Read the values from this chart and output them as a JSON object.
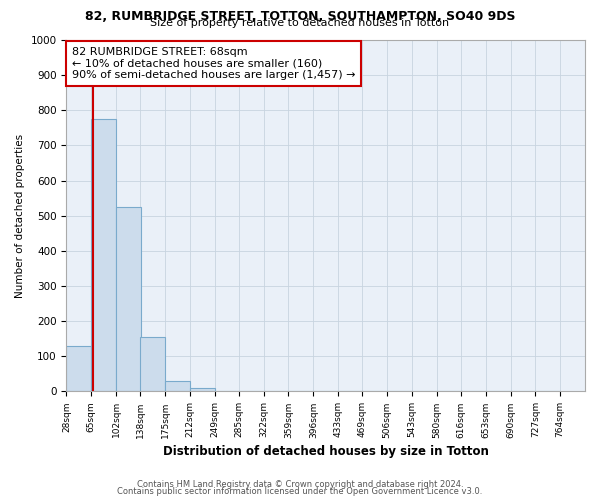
{
  "title1": "82, RUMBRIDGE STREET, TOTTON, SOUTHAMPTON, SO40 9DS",
  "title2": "Size of property relative to detached houses in Totton",
  "xlabel": "Distribution of detached houses by size in Totton",
  "ylabel": "Number of detached properties",
  "footer1": "Contains HM Land Registry data © Crown copyright and database right 2024.",
  "footer2": "Contains public sector information licensed under the Open Government Licence v3.0.",
  "bins": [
    28,
    65,
    102,
    138,
    175,
    212,
    249,
    285,
    322,
    359,
    396,
    433,
    469,
    506,
    543,
    580,
    616,
    653,
    690,
    727,
    764
  ],
  "bar_heights": [
    130,
    775,
    525,
    155,
    30,
    10,
    0,
    0,
    0,
    0,
    0,
    0,
    0,
    0,
    0,
    0,
    0,
    0,
    0,
    0
  ],
  "bar_color": "#ccdcec",
  "bar_edge_color": "#7aaacc",
  "ylim": [
    0,
    1000
  ],
  "property_size": 68,
  "red_line_color": "#cc0000",
  "annotation_text": "82 RUMBRIDGE STREET: 68sqm\n← 10% of detached houses are smaller (160)\n90% of semi-detached houses are larger (1,457) →",
  "annotation_box_color": "#cc0000",
  "tick_labels": [
    "28sqm",
    "65sqm",
    "102sqm",
    "138sqm",
    "175sqm",
    "212sqm",
    "249sqm",
    "285sqm",
    "322sqm",
    "359sqm",
    "396sqm",
    "433sqm",
    "469sqm",
    "506sqm",
    "543sqm",
    "580sqm",
    "616sqm",
    "653sqm",
    "690sqm",
    "727sqm",
    "764sqm"
  ],
  "bg_color": "#ffffff",
  "plot_bg_color": "#eaf0f8",
  "grid_color": "#c8d4e0"
}
